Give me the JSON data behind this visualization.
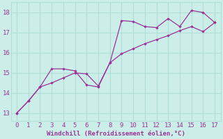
{
  "xlabel": "Windchill (Refroidissement éolien,°C)",
  "background_color": "#cceee8",
  "grid_color": "#b0ddd8",
  "line_color": "#993399",
  "x_line1": [
    0,
    1,
    2,
    3,
    4,
    5,
    6,
    7,
    8,
    9,
    10,
    11,
    12,
    13,
    14,
    15,
    16,
    17
  ],
  "y_line1": [
    13.0,
    13.6,
    14.3,
    15.2,
    15.2,
    15.1,
    14.4,
    14.3,
    15.5,
    17.6,
    17.55,
    17.3,
    17.25,
    17.7,
    17.3,
    18.1,
    18.0,
    17.5
  ],
  "x_line2": [
    0,
    1,
    2,
    3,
    4,
    5,
    6,
    7,
    8,
    9,
    10,
    11,
    12,
    13,
    14,
    15,
    16,
    17
  ],
  "y_line2": [
    13.0,
    13.6,
    14.3,
    14.5,
    14.75,
    15.0,
    14.95,
    14.35,
    15.5,
    15.95,
    16.2,
    16.45,
    16.65,
    16.85,
    17.1,
    17.3,
    17.05,
    17.5
  ],
  "xlim": [
    -0.5,
    17.5
  ],
  "ylim": [
    12.6,
    18.5
  ],
  "yticks": [
    13,
    14,
    15,
    16,
    17,
    18
  ],
  "xticks": [
    0,
    1,
    2,
    3,
    4,
    5,
    6,
    7,
    8,
    9,
    10,
    11,
    12,
    13,
    14,
    15,
    16,
    17
  ]
}
